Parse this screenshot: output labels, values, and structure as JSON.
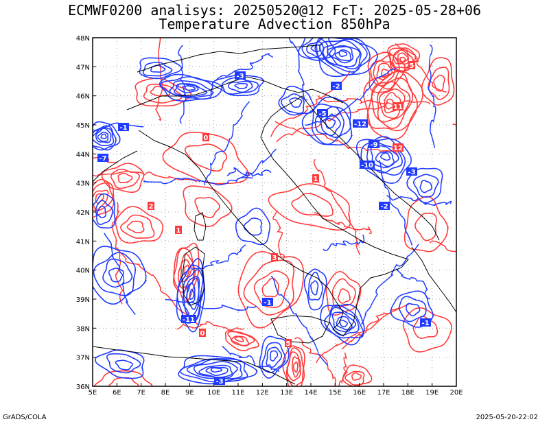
{
  "title": {
    "line1": "ECMWF0200 analisys: 20250520@12 FcT: 2025-05-28+06",
    "line2": "Temperature Advection 850hPa"
  },
  "map": {
    "lon_labels": [
      "5E",
      "6E",
      "7E",
      "8E",
      "9E",
      "10E",
      "11E",
      "12E",
      "13E",
      "14E",
      "15E",
      "16E",
      "17E",
      "18E",
      "19E",
      "20E"
    ],
    "lat_labels": [
      "36N",
      "37N",
      "38N",
      "39N",
      "40N",
      "41N",
      "42N",
      "43N",
      "44N",
      "45N",
      "46N",
      "47N",
      "48N"
    ],
    "colors": {
      "negative_advection": "#1f3bff",
      "positive_advection": "#ff3a3a",
      "coastline": "#000000",
      "grid": "#888888"
    },
    "contour_labels": [
      "0",
      "1",
      "-1",
      "2",
      "-2",
      "3",
      "-3",
      "5",
      "-5",
      "-7",
      "-9",
      "-10",
      "-11",
      "-12",
      "11",
      "12"
    ]
  },
  "footer": {
    "credit": "GrADS/COLA",
    "timestamp": "2025-05-20-22:02"
  }
}
